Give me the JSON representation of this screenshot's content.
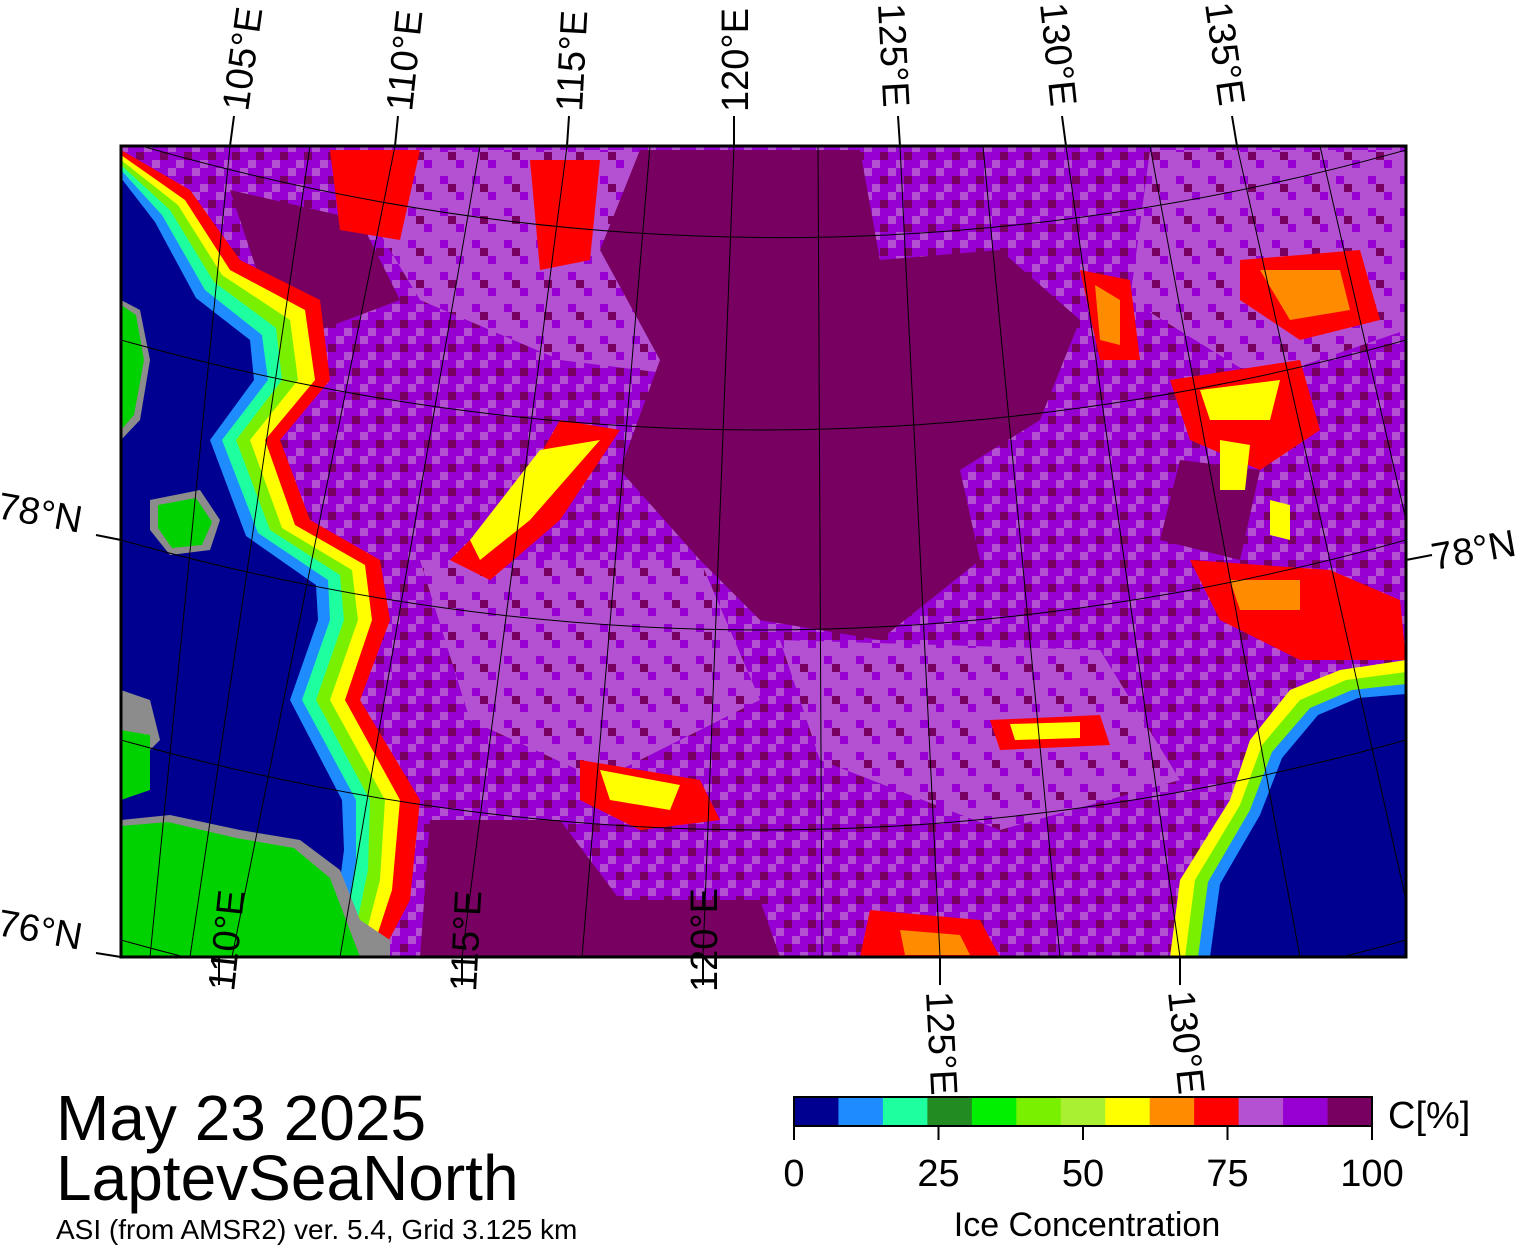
{
  "title": {
    "date": "May 23 2025",
    "region": "LaptevSeaNorth",
    "source": "ASI (from AMSR2) ver. 5.4,  Grid 3.125 km"
  },
  "map": {
    "top_lon_labels": [
      "105°E",
      "110°E",
      "115°E",
      "120°E",
      "125°E",
      "130°E",
      "135°E"
    ],
    "bottom_lon_labels": [
      "110°E",
      "115°E",
      "120°E",
      "125°E",
      "130°E"
    ],
    "left_lat_labels": [
      "78°N",
      "76°N"
    ],
    "right_lat_labels": [
      "78°N"
    ],
    "colors": {
      "open_water": "#000090",
      "land": "#00d200",
      "coast_mask": "#8c8c8c",
      "ice_full": "#780060",
      "ice_high": "#9600d2",
      "ice_mid": "#b450d2",
      "ice_edge_red": "#ff0000",
      "ice_edge_orange": "#ff8c00",
      "ice_edge_yellow": "#ffff00"
    }
  },
  "colorbar": {
    "label": "Ice Concentration",
    "unit_label": "C[%]",
    "tick_labels": [
      "0",
      "25",
      "50",
      "75",
      "100"
    ],
    "colors": [
      "#000090",
      "#1e8cff",
      "#1effa0",
      "#228b22",
      "#00f000",
      "#78f000",
      "#aaf032",
      "#ffff00",
      "#ff8c00",
      "#ff0000",
      "#b450d2",
      "#9600d2",
      "#780060"
    ]
  }
}
